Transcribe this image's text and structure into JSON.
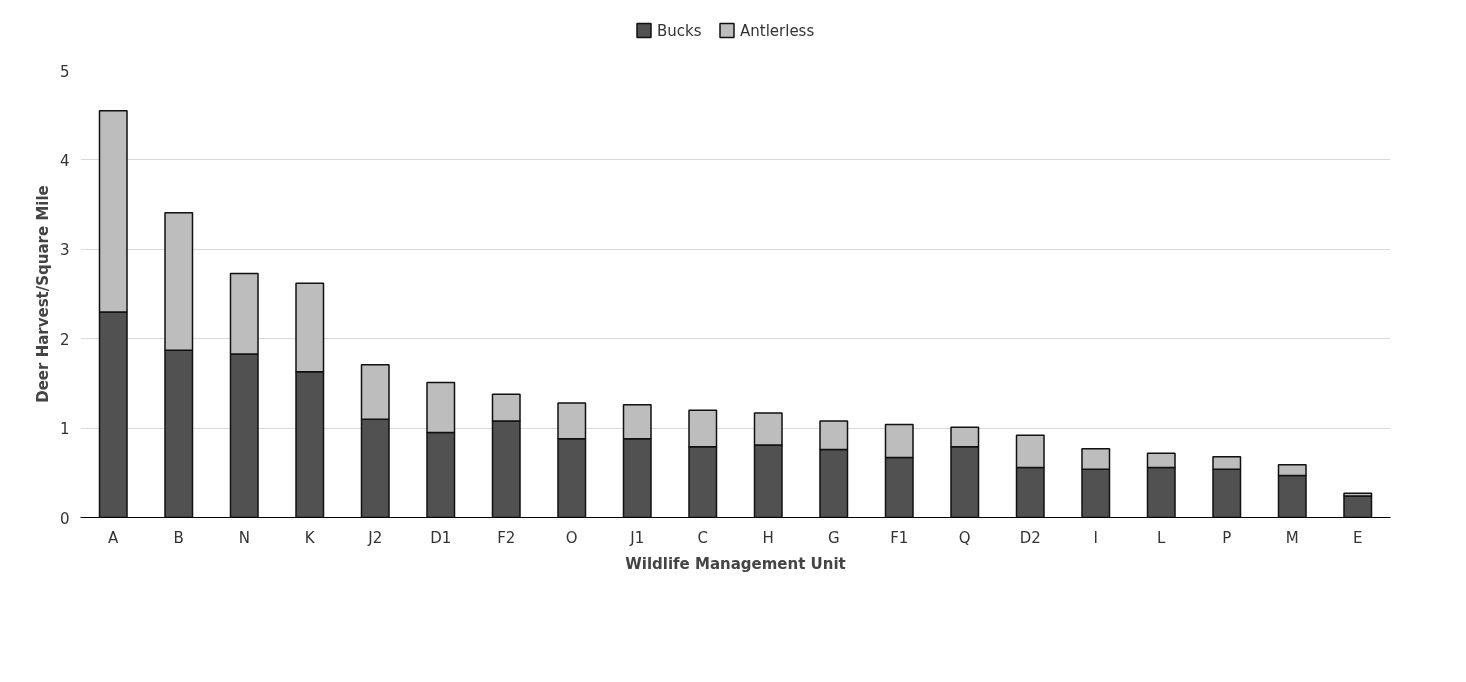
{
  "chart_data": {
    "type": "bar",
    "stacked": true,
    "xlabel": "Wildlife Management Unit",
    "ylabel": "Deer Harvest/Square Mile",
    "categories": [
      "A",
      "B",
      "N",
      "K",
      "J2",
      "D1",
      "F2",
      "O",
      "J1",
      "C",
      "H",
      "G",
      "F1",
      "Q",
      "D2",
      "I",
      "L",
      "P",
      "M",
      "E"
    ],
    "series": [
      {
        "name": "Bucks",
        "color": "#515151",
        "values": [
          2.3,
          1.87,
          1.83,
          1.63,
          1.1,
          0.95,
          1.08,
          0.88,
          0.88,
          0.79,
          0.81,
          0.76,
          0.67,
          0.79,
          0.56,
          0.54,
          0.56,
          0.54,
          0.47,
          0.24
        ]
      },
      {
        "name": "Antlerless",
        "color": "#bdbdbd",
        "values": [
          2.25,
          1.54,
          0.9,
          0.99,
          0.61,
          0.56,
          0.3,
          0.4,
          0.38,
          0.41,
          0.36,
          0.32,
          0.37,
          0.22,
          0.36,
          0.23,
          0.16,
          0.14,
          0.12,
          0.03
        ]
      }
    ],
    "ylim": [
      0,
      5
    ],
    "yticks": [
      0,
      1,
      2,
      3,
      4,
      5
    ],
    "grid": "y",
    "legend": "top"
  }
}
